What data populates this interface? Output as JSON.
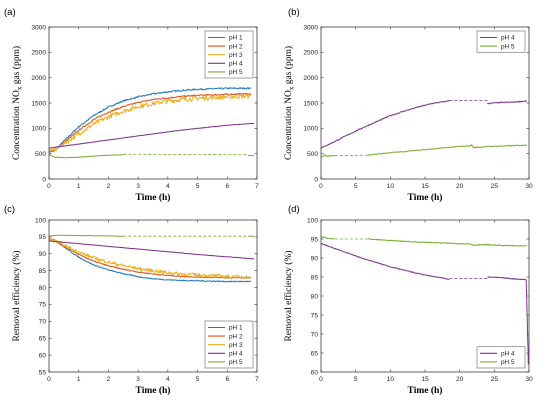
{
  "colors": {
    "ph1": "#1f77c0",
    "ph2": "#d95319",
    "ph3": "#edb120",
    "ph4": "#7e2f8e",
    "ph5": "#77ac30"
  },
  "chart_data": [
    {
      "panel": "(a)",
      "type": "line",
      "xlabel": "Time (h)",
      "ylabel": "Concentration NO",
      "ylabel_sub": "x",
      "ylabel_tail": " gas (ppm)",
      "xlim": [
        0,
        7
      ],
      "ylim": [
        0,
        3000
      ],
      "xticks": [
        "0",
        "1",
        "2",
        "3",
        "4",
        "5",
        "6",
        "7"
      ],
      "yticks": [
        "0",
        "500",
        "1000",
        "1500",
        "2000",
        "2500",
        "3000"
      ],
      "legend_position": "top-right",
      "series": [
        {
          "name": "pH 1",
          "color_key": "ph1",
          "noise": 14,
          "x": [
            0,
            0.2,
            0.5,
            1,
            1.5,
            2,
            2.5,
            3,
            3.5,
            4,
            4.5,
            5,
            5.5,
            6,
            6.5,
            6.8
          ],
          "y": [
            540,
            560,
            750,
            1030,
            1250,
            1420,
            1540,
            1620,
            1680,
            1720,
            1750,
            1770,
            1780,
            1790,
            1790,
            1790
          ]
        },
        {
          "name": "pH 2",
          "color_key": "ph2",
          "noise": 14,
          "x": [
            0,
            0.2,
            0.5,
            1,
            1.5,
            2,
            2.5,
            3,
            3.5,
            4,
            4.5,
            5,
            5.5,
            6,
            6.5,
            6.8
          ],
          "y": [
            540,
            560,
            720,
            960,
            1170,
            1320,
            1430,
            1510,
            1570,
            1600,
            1630,
            1650,
            1660,
            1670,
            1680,
            1680
          ]
        },
        {
          "name": "pH 3",
          "color_key": "ph3",
          "noise": 45,
          "x": [
            0,
            0.2,
            0.5,
            1,
            1.5,
            2,
            2.5,
            3,
            3.5,
            4,
            4.5,
            5,
            5.5,
            6,
            6.5,
            6.8
          ],
          "y": [
            560,
            580,
            700,
            890,
            1080,
            1230,
            1340,
            1430,
            1490,
            1540,
            1570,
            1590,
            1610,
            1620,
            1630,
            1640
          ]
        },
        {
          "name": "pH 4",
          "color_key": "ph4",
          "noise": 4,
          "x": [
            0,
            0.5,
            1,
            2,
            3,
            4,
            5,
            6,
            6.9
          ],
          "y": [
            610,
            650,
            690,
            770,
            850,
            930,
            1000,
            1060,
            1100
          ]
        },
        {
          "name": "pH 5",
          "color_key": "ph5",
          "noise": 4,
          "segments": [
            {
              "x": [
                0,
                0.2,
                0.5,
                1,
                1.5,
                2,
                2.5
              ],
              "y": [
                480,
                430,
                420,
                430,
                450,
                470,
                480
              ]
            },
            {
              "dashed": true,
              "x": [
                2.5,
                6.7
              ],
              "y": [
                490,
                480
              ]
            },
            {
              "x": [
                6.7,
                6.9
              ],
              "y": [
                470,
                460
              ]
            }
          ]
        }
      ]
    },
    {
      "panel": "(b)",
      "type": "line",
      "xlabel": "Time (h)",
      "ylabel": "Concentration NO",
      "ylabel_sub": "x",
      "ylabel_tail": " gas (ppm)",
      "xlim": [
        0,
        30
      ],
      "ylim": [
        0,
        3000
      ],
      "xticks": [
        "0",
        "5",
        "10",
        "15",
        "20",
        "25",
        "30"
      ],
      "yticks": [
        "0",
        "500",
        "1000",
        "1500",
        "2000",
        "2500",
        "3000"
      ],
      "legend_position": "top-right",
      "series": [
        {
          "name": "pH 4",
          "color_key": "ph4",
          "noise": 10,
          "segments": [
            {
              "x": [
                0,
                2,
                4,
                6,
                8,
                10,
                12,
                14,
                16,
                18,
                18.5
              ],
              "y": [
                610,
                740,
                880,
                1010,
                1130,
                1250,
                1340,
                1420,
                1490,
                1530,
                1550
              ]
            },
            {
              "dashed": true,
              "x": [
                18.5,
                24
              ],
              "y": [
                1550,
                1550
              ]
            },
            {
              "x": [
                24,
                26,
                28,
                29.7
              ],
              "y": [
                1490,
                1510,
                1520,
                1540
              ]
            }
          ]
        },
        {
          "name": "pH 5",
          "color_key": "ph5",
          "noise": 8,
          "segments": [
            {
              "x": [
                0,
                0.5,
                1,
                2
              ],
              "y": [
                420,
                470,
                450,
                460
              ]
            },
            {
              "dashed": true,
              "x": [
                2,
                6.8
              ],
              "y": [
                460,
                470
              ]
            },
            {
              "x": [
                6.8,
                8,
                10,
                12,
                14,
                16,
                18,
                20,
                21.7
              ],
              "y": [
                470,
                490,
                520,
                540,
                570,
                590,
                620,
                640,
                660
              ]
            },
            {
              "x": [
                21.7,
                22,
                24,
                26,
                28,
                29.7
              ],
              "y": [
                680,
                620,
                640,
                650,
                660,
                670
              ]
            }
          ]
        }
      ]
    },
    {
      "panel": "(c)",
      "type": "line",
      "xlabel": "Time (h)",
      "ylabel": "Removal efficiency (%)",
      "xlim": [
        0,
        7
      ],
      "ylim": [
        55,
        100
      ],
      "xticks": [
        "0",
        "1",
        "2",
        "3",
        "4",
        "5",
        "6",
        "7"
      ],
      "yticks": [
        "55",
        "60",
        "65",
        "70",
        "75",
        "80",
        "85",
        "90",
        "95",
        "100"
      ],
      "legend_position": "bottom-right",
      "series": [
        {
          "name": "pH 1",
          "color_key": "ph1",
          "noise": 0.15,
          "x": [
            0,
            0.2,
            0.5,
            1,
            1.5,
            2,
            2.5,
            3,
            3.5,
            4,
            4.5,
            5,
            5.5,
            6,
            6.5,
            6.8
          ],
          "y": [
            94.5,
            94,
            92,
            89,
            86.7,
            85.2,
            84.1,
            83.2,
            82.6,
            82.3,
            82.1,
            82,
            81.9,
            81.8,
            81.8,
            81.8
          ]
        },
        {
          "name": "pH 2",
          "color_key": "ph2",
          "noise": 0.15,
          "x": [
            0,
            0.2,
            0.5,
            1,
            1.5,
            2,
            2.5,
            3,
            3.5,
            4,
            4.5,
            5,
            5.5,
            6,
            6.5,
            6.8
          ],
          "y": [
            94.5,
            94,
            92.3,
            89.8,
            87.8,
            86.4,
            85.4,
            84.6,
            84,
            83.6,
            83.3,
            83.1,
            83,
            82.9,
            82.9,
            82.9
          ]
        },
        {
          "name": "pH 3",
          "color_key": "ph3",
          "noise": 0.5,
          "x": [
            0,
            0.2,
            0.5,
            1,
            1.5,
            2,
            2.5,
            3,
            3.5,
            4,
            4.5,
            5,
            5.5,
            6,
            6.5,
            6.8
          ],
          "y": [
            94.3,
            93.8,
            92.5,
            90.5,
            88.8,
            87.5,
            86.5,
            85.6,
            85,
            84.4,
            84,
            83.7,
            83.5,
            83.3,
            83.2,
            83.1
          ]
        },
        {
          "name": "pH 4",
          "color_key": "ph4",
          "noise": 0.05,
          "x": [
            0,
            1,
            2,
            3,
            4,
            5,
            6,
            6.9
          ],
          "y": [
            93.8,
            93,
            92.2,
            91.4,
            90.6,
            89.8,
            89.1,
            88.5
          ]
        },
        {
          "name": "pH 5",
          "color_key": "ph5",
          "noise": 0.05,
          "segments": [
            {
              "x": [
                0,
                0.3,
                1,
                2,
                2.5
              ],
              "y": [
                95.2,
                95.5,
                95.4,
                95.3,
                95.2
              ]
            },
            {
              "dashed": true,
              "x": [
                2.5,
                6.7
              ],
              "y": [
                95.2,
                95.2
              ]
            },
            {
              "x": [
                6.7,
                6.9
              ],
              "y": [
                95.2,
                95.2
              ]
            }
          ]
        }
      ]
    },
    {
      "panel": "(d)",
      "type": "line",
      "xlabel": "Time (h)",
      "ylabel": "Removal efficiency (%)",
      "xlim": [
        0,
        30
      ],
      "ylim": [
        60,
        100
      ],
      "xticks": [
        "0",
        "5",
        "10",
        "15",
        "20",
        "25",
        "30"
      ],
      "yticks": [
        "60",
        "65",
        "70",
        "75",
        "80",
        "85",
        "90",
        "95",
        "100"
      ],
      "legend_position": "bottom-right",
      "series": [
        {
          "name": "pH 4",
          "color_key": "ph4",
          "noise": 0.1,
          "segments": [
            {
              "x": [
                0,
                2,
                4,
                6,
                8,
                10,
                12,
                14,
                16,
                18,
                18.5
              ],
              "y": [
                93.8,
                92.5,
                91.2,
                89.9,
                88.8,
                87.7,
                86.8,
                85.9,
                85.2,
                84.6,
                84.4
              ]
            },
            {
              "dashed": true,
              "x": [
                18.5,
                24
              ],
              "y": [
                84.6,
                84.6
              ]
            },
            {
              "x": [
                24,
                26,
                28,
                29.6
              ],
              "y": [
                85,
                84.8,
                84.5,
                84.3
              ]
            },
            {
              "x": [
                29.6,
                29.8,
                29.9
              ],
              "y": [
                84.3,
                70,
                62
              ]
            }
          ]
        },
        {
          "name": "pH 5",
          "color_key": "ph5",
          "noise": 0.12,
          "segments": [
            {
              "x": [
                0,
                0.5,
                1,
                2
              ],
              "y": [
                95.6,
                95.4,
                95.2,
                95
              ]
            },
            {
              "dashed": true,
              "x": [
                2,
                6.8
              ],
              "y": [
                95,
                95
              ]
            },
            {
              "x": [
                6.8,
                10,
                14,
                18,
                21.5,
                22,
                24,
                26,
                28,
                29.7
              ],
              "y": [
                95,
                94.6,
                94.2,
                93.9,
                93.7,
                93.4,
                93.5,
                93.3,
                93.2,
                93.1
              ]
            }
          ]
        }
      ]
    }
  ]
}
